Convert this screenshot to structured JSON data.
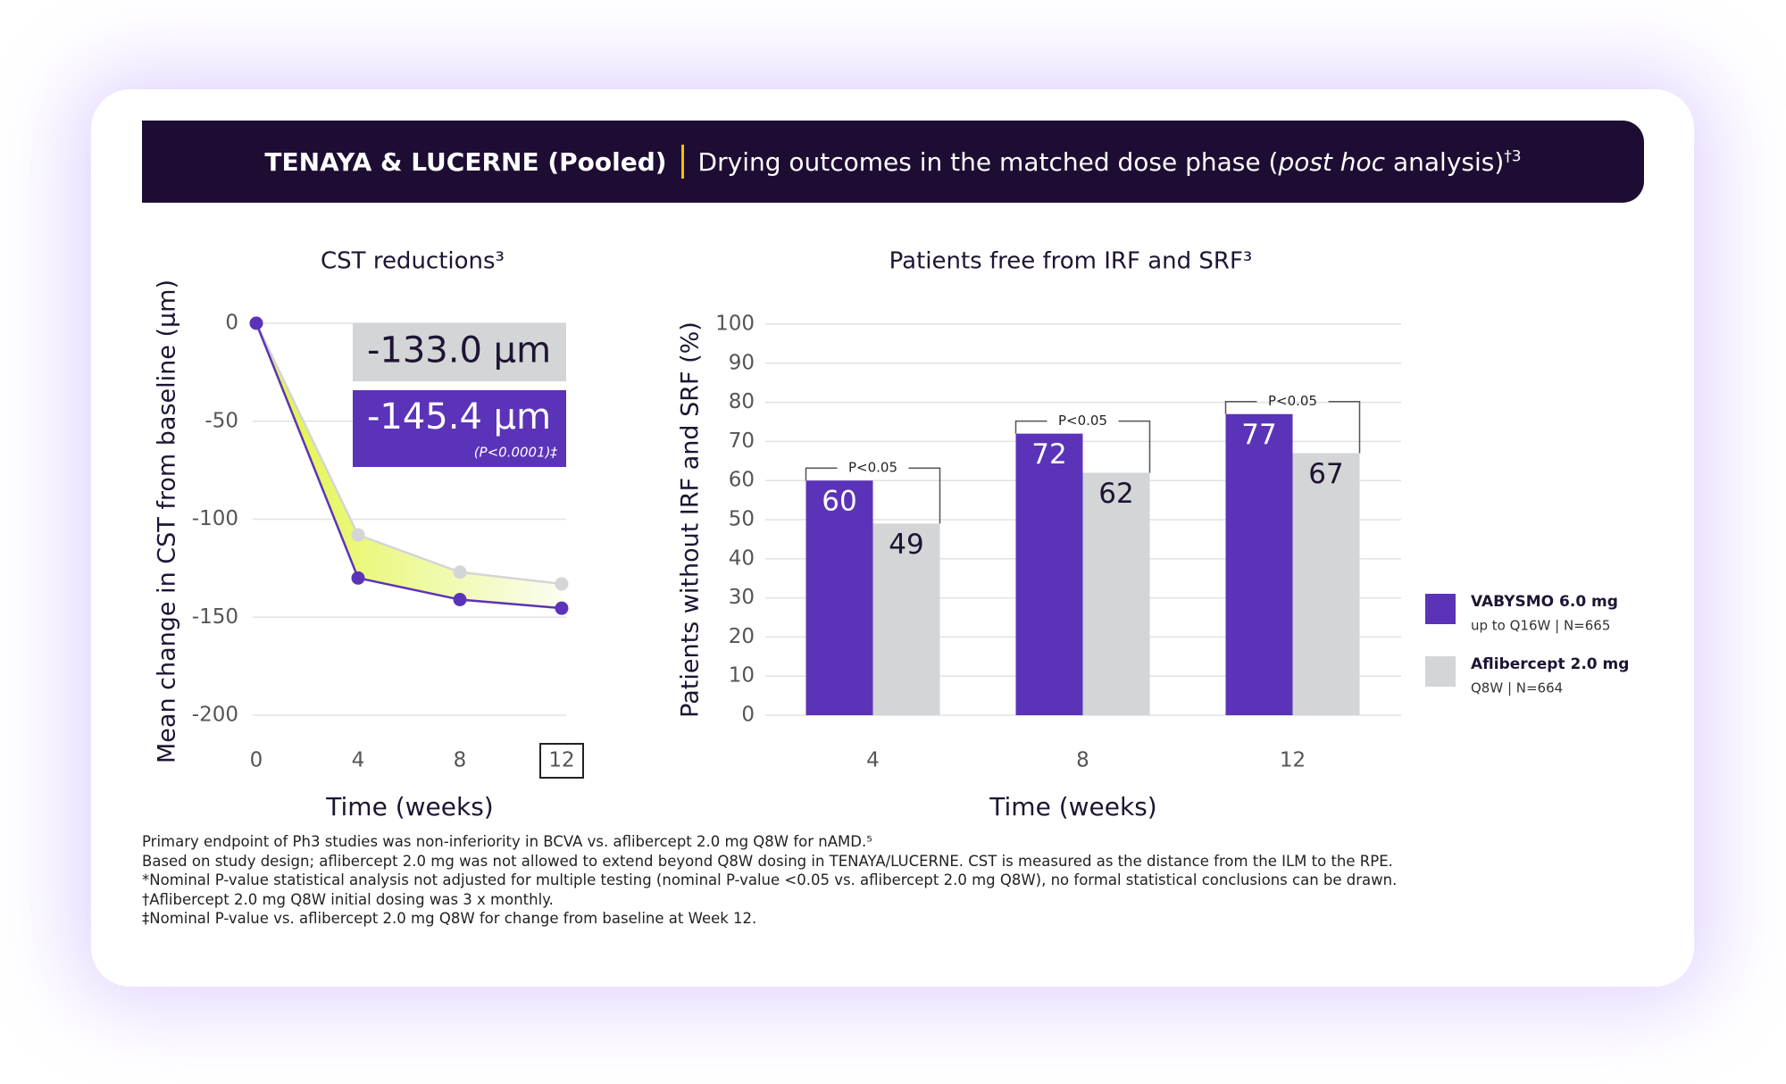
{
  "header": {
    "title": "TENAYA & LUCERNE (Pooled)",
    "subtitle_parts": [
      "Drying outcomes in the matched dose phase (",
      "post hoc",
      " analysis)",
      "†3"
    ]
  },
  "chart_data": [
    {
      "type": "line",
      "title": "CST reductions³",
      "xlabel": "Time (weeks)",
      "ylabel": "Mean change in CST from baseline (µm)",
      "x": [
        0,
        4,
        8,
        12
      ],
      "xlim": [
        0,
        12
      ],
      "xticks": [
        0,
        4,
        8,
        12
      ],
      "ylim": [
        -200,
        0
      ],
      "yticks": [
        0,
        -50,
        -100,
        -150,
        -200
      ],
      "grid": true,
      "series": [
        {
          "color": "#d3d5d6",
          "values": [
            0,
            -108,
            -127,
            -133.0
          ]
        },
        {
          "color": "#5b33b8",
          "values": [
            0,
            -130,
            -141,
            -145.4
          ]
        }
      ],
      "annotations": [
        {
          "label": "-133.0 µm"
        },
        {
          "label": "-145.4 µm",
          "note": "(P<0.0001)‡"
        }
      ]
    },
    {
      "type": "bar",
      "title": "Patients free from IRF and SRF³",
      "xlabel": "Time (weeks)",
      "ylabel": "Patients without IRF and SRF (%)",
      "categories": [
        "4",
        "8",
        "12"
      ],
      "ylim": [
        0,
        100
      ],
      "yticks": [
        0,
        10,
        20,
        30,
        40,
        50,
        60,
        70,
        80,
        90,
        100
      ],
      "grid": true,
      "series": [
        {
          "name": "VABYSMO 6.0 mg",
          "description": "up to Q16W | N=665",
          "color": "#5b33b8",
          "values": [
            60,
            72,
            77
          ]
        },
        {
          "name": "Aflibercept 2.0 mg",
          "description": "Q8W | N=664",
          "color": "#d3d5d6",
          "values": [
            49,
            62,
            67
          ]
        }
      ],
      "significance": [
        "P<0.05",
        "P<0.05",
        "P<0.05"
      ],
      "legend": "right"
    }
  ],
  "footnotes": [
    "Primary endpoint of Ph3 studies was non-inferiority in BCVA vs. aflibercept 2.0 mg Q8W for nAMD.⁵",
    "Based on study design; aflibercept 2.0 mg was not allowed to extend beyond Q8W dosing in TENAYA/LUCERNE. CST is measured as the distance from the ILM to the RPE.",
    "*Nominal P-value statistical analysis not adjusted for multiple testing (nominal P-value <0.05 vs. aflibercept 2.0 mg Q8W), no formal statistical conclusions can be drawn.",
    "†Aflibercept 2.0 mg Q8W initial dosing was 3 x monthly.",
    "‡Nominal P-value vs. aflibercept 2.0 mg Q8W for change from baseline at Week 12."
  ]
}
